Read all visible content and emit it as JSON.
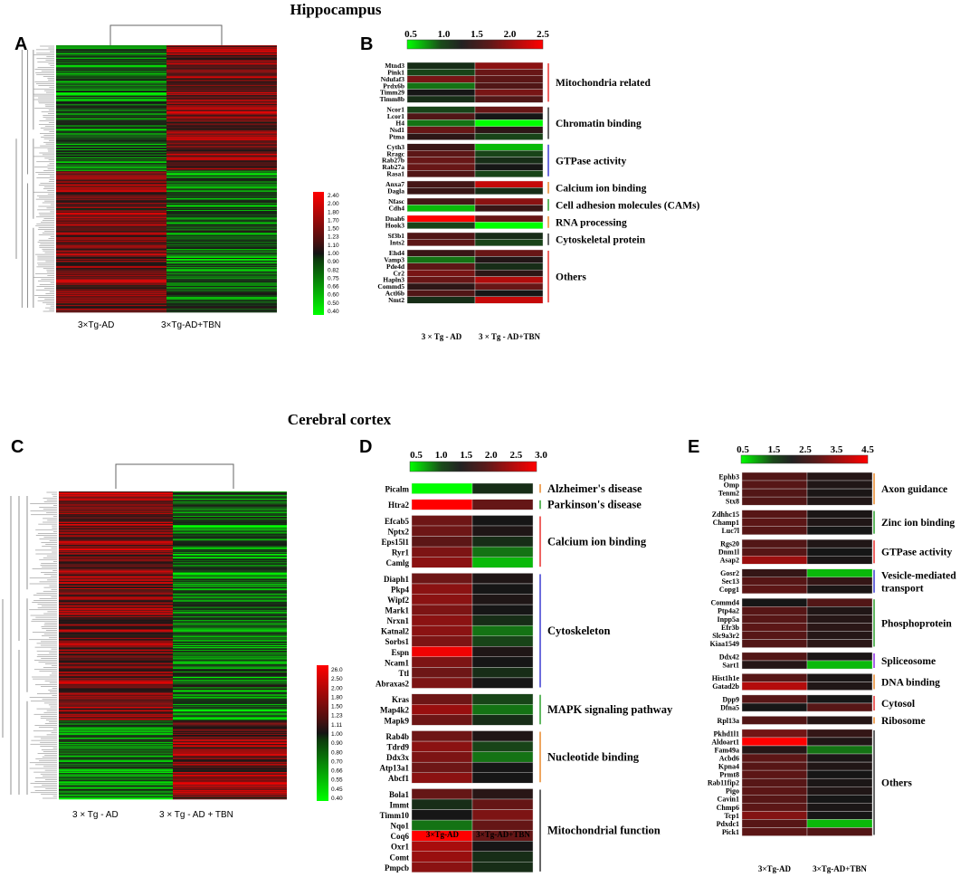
{
  "titles": {
    "hippocampus": "Hippocampus",
    "cortex": "Cerebral cortex"
  },
  "panel_letters": {
    "A": "A",
    "B": "B",
    "C": "C",
    "D": "D",
    "E": "E"
  },
  "colors": {
    "green": "#00ff00",
    "black": "#141414",
    "red": "#ff0000",
    "bar_red": "#e8312d",
    "bar_black": "#333333",
    "bar_blue": "#3b3bd0",
    "bar_orange": "#e8892a",
    "bar_green": "#2ca02c",
    "bar_purple": "#8a2be2"
  },
  "chart_data": [
    {
      "panel": "A",
      "type": "heatmap",
      "title": "Hippocampus",
      "columns": [
        "3×Tg-AD",
        "3×Tg-AD+TBN"
      ],
      "legend_ticks": [
        "2.40",
        "2.00",
        "1.80",
        "1.70",
        "1.50",
        "1.23",
        "1.10",
        "1.00",
        "0.90",
        "0.82",
        "0.75",
        "0.66",
        "0.60",
        "0.50",
        "0.40"
      ],
      "row_count": 300,
      "pattern": "top ~45% of genes lower in 3×Tg-AD (green) and higher in 3×Tg-AD+TBN (red); bottom ~55% higher in 3×Tg-AD (red) and lower in 3×Tg-AD+TBN (green)"
    },
    {
      "panel": "B",
      "type": "heatmap",
      "scale_ticks": [
        "0.5",
        "1.0",
        "1.5",
        "2.0",
        "2.5"
      ],
      "columns": [
        "3 × Tg - AD",
        "3 × Tg - AD+TBN"
      ],
      "groups": [
        {
          "name": "Mitochondria related",
          "color": "red",
          "genes": [
            "Mtnd3",
            "Pink1",
            "Ndufaf3",
            "Prdx6b",
            "Timm29",
            "Timm8b"
          ],
          "values": [
            [
              0.9,
              1.9
            ],
            [
              0.8,
              1.7
            ],
            [
              1.8,
              1.6
            ],
            [
              0.7,
              1.5
            ],
            [
              1.0,
              1.8
            ],
            [
              0.9,
              1.5
            ]
          ]
        },
        {
          "name": "Chromatin binding",
          "color": "black",
          "genes": [
            "Ncor1",
            "Lcor1",
            "H4",
            "Nsd1",
            "Ptma"
          ],
          "values": [
            [
              0.8,
              1.7
            ],
            [
              1.5,
              1.0
            ],
            [
              0.7,
              0.5
            ],
            [
              1.7,
              1.2
            ],
            [
              1.2,
              0.8
            ]
          ]
        },
        {
          "name": "GTPase activity",
          "color": "blue",
          "genes": [
            "Cyth3",
            "Rragc",
            "Rab27b",
            "Rab27a",
            "Rasa1"
          ],
          "values": [
            [
              1.3,
              0.6
            ],
            [
              1.6,
              0.8
            ],
            [
              1.7,
              0.9
            ],
            [
              1.7,
              1.0
            ],
            [
              1.5,
              0.8
            ]
          ]
        },
        {
          "name": "Calcium ion binding",
          "color": "orange",
          "genes": [
            "Anxa7",
            "Dagla"
          ],
          "values": [
            [
              1.4,
              2.2
            ],
            [
              1.3,
              0.9
            ]
          ]
        },
        {
          "name": "Cell adhesion molecules (CAMs)",
          "color": "green",
          "genes": [
            "Nfasc",
            "Cdh4"
          ],
          "values": [
            [
              1.4,
              1.9
            ],
            [
              0.6,
              1.3
            ]
          ]
        },
        {
          "name": "RNA processing",
          "color": "orange",
          "genes": [
            "Dnah6",
            "Hook3"
          ],
          "values": [
            [
              2.5,
              1.7
            ],
            [
              0.8,
              0.5
            ]
          ]
        },
        {
          "name": "Cytoskeletal protein",
          "color": "black",
          "genes": [
            "Sf3b1",
            "Ints2"
          ],
          "values": [
            [
              1.5,
              0.9
            ],
            [
              1.6,
              0.8
            ]
          ]
        },
        {
          "name": "Others",
          "color": "red",
          "genes": [
            "Ehd4",
            "Vamp3",
            "Pde4d",
            "Cr2",
            "Hapln3",
            "Commd5",
            "Actl6b",
            "Nmt2"
          ],
          "values": [
            [
              1.3,
              1.7
            ],
            [
              0.7,
              1.1
            ],
            [
              1.6,
              0.9
            ],
            [
              1.8,
              1.2
            ],
            [
              1.7,
              2.1
            ],
            [
              1.2,
              1.7
            ],
            [
              1.5,
              1.0
            ],
            [
              0.9,
              2.2
            ]
          ]
        }
      ]
    },
    {
      "panel": "C",
      "type": "heatmap",
      "title": "Cerebral cortex",
      "columns": [
        "3 × Tg - AD",
        "3 × Tg - AD + TBN"
      ],
      "legend_ticks": [
        "26.0",
        "2.50",
        "2.00",
        "1.80",
        "1.50",
        "1.23",
        "1.11",
        "1.00",
        "0.90",
        "0.80",
        "0.70",
        "0.66",
        "0.55",
        "0.45",
        "0.40"
      ],
      "row_count": 330,
      "pattern": "top ~75% of genes higher in 3×Tg-AD (red) and lower with TBN (green/black); bottom ~25% lower in 3×Tg-AD (green) and higher with TBN (red)"
    },
    {
      "panel": "D",
      "type": "heatmap",
      "scale_ticks": [
        "0.5",
        "1.0",
        "1.5",
        "2.0",
        "2.5",
        "3.0"
      ],
      "columns": [
        "3×Tg-AD",
        "3×Tg-AD+TBN"
      ],
      "groups": [
        {
          "name": "Alzheimer's disease",
          "color": "orange",
          "genes": [
            "Picalm"
          ],
          "values": [
            [
              0.5,
              0.9
            ]
          ]
        },
        {
          "name": "Parkinson's disease",
          "color": "green",
          "genes": [
            "Htra2"
          ],
          "values": [
            [
              3.0,
              1.9
            ]
          ]
        },
        {
          "name": "Calcium ion binding",
          "color": "red",
          "genes": [
            "Efcab5",
            "Nptx2",
            "Eps15l1",
            "Ryr1",
            "Camlg"
          ],
          "values": [
            [
              2.0,
              1.0
            ],
            [
              2.0,
              1.1
            ],
            [
              1.8,
              0.9
            ],
            [
              2.1,
              0.7
            ],
            [
              2.2,
              0.6
            ]
          ]
        },
        {
          "name": "Cytoskeleton",
          "color": "blue",
          "genes": [
            "Diaph1",
            "Pkp4",
            "Wipf2",
            "Mark1",
            "Nrxn1",
            "Katnal2",
            "Sorbs1",
            "Espn",
            "Ncam1",
            "Ttl",
            "Abraxas2"
          ],
          "values": [
            [
              2.0,
              1.1
            ],
            [
              2.2,
              1.0
            ],
            [
              2.2,
              1.1
            ],
            [
              2.1,
              1.0
            ],
            [
              2.2,
              0.9
            ],
            [
              2.2,
              0.7
            ],
            [
              2.1,
              0.8
            ],
            [
              2.9,
              1.1
            ],
            [
              2.1,
              1.0
            ],
            [
              2.0,
              0.9
            ],
            [
              2.1,
              1.0
            ]
          ]
        },
        {
          "name": "MAPK signaling pathway",
          "color": "green",
          "genes": [
            "Kras",
            "Map4k2",
            "Mapk9"
          ],
          "values": [
            [
              2.0,
              0.8
            ],
            [
              2.3,
              0.7
            ],
            [
              2.0,
              0.9
            ]
          ]
        },
        {
          "name": "Nucleotide binding",
          "color": "orange",
          "genes": [
            "Rab4b",
            "Tdrd9",
            "Ddx3x",
            "Atp13a1",
            "Abcf1"
          ],
          "values": [
            [
              2.0,
              1.1
            ],
            [
              2.2,
              0.8
            ],
            [
              2.1,
              0.7
            ],
            [
              2.0,
              1.0
            ],
            [
              2.2,
              1.0
            ]
          ]
        },
        {
          "name": "Mitochondrial function",
          "color": "black",
          "genes": [
            "Bola1",
            "Immt",
            "Timm10",
            "Nqo1",
            "Coq6",
            "Oxr1",
            "Comt",
            "Pmpcb"
          ],
          "values": [
            [
              1.9,
              1.2
            ],
            [
              0.9,
              1.9
            ],
            [
              1.0,
              2.1
            ],
            [
              0.7,
              1.9
            ],
            [
              3.0,
              1.9
            ],
            [
              2.4,
              1.0
            ],
            [
              2.3,
              0.9
            ],
            [
              2.2,
              0.9
            ]
          ]
        }
      ]
    },
    {
      "panel": "E",
      "type": "heatmap",
      "scale_ticks": [
        "0.5",
        "1.5",
        "2.5",
        "3.5",
        "4.5"
      ],
      "columns": [
        "3×Tg-AD",
        "3×Tg-AD+TBN"
      ],
      "groups": [
        {
          "name": "Axon guidance",
          "color": "orange",
          "genes": [
            "Ephb3",
            "Omp",
            "Tenm2",
            "Stx8"
          ],
          "values": [
            [
              2.2,
              1.3
            ],
            [
              2.3,
              1.2
            ],
            [
              2.2,
              1.1
            ],
            [
              2.2,
              1.2
            ]
          ]
        },
        {
          "name": "Zinc ion binding",
          "color": "green",
          "genes": [
            "Zdhhc15",
            "Champ1",
            "Luc7l"
          ],
          "values": [
            [
              2.3,
              1.1
            ],
            [
              2.4,
              1.2
            ],
            [
              2.3,
              1.0
            ]
          ]
        },
        {
          "name": "GTPase activity",
          "color": "red",
          "genes": [
            "Rgs20",
            "Dnm1l",
            "Asap2"
          ],
          "values": [
            [
              2.2,
              1.2
            ],
            [
              2.3,
              1.0
            ],
            [
              3.3,
              1.1
            ]
          ]
        },
        {
          "name": "Vesicle-mediated transport",
          "color": "blue",
          "genes": [
            "Gosr2",
            "Sec13",
            "Copg1"
          ],
          "values": [
            [
              1.6,
              0.6
            ],
            [
              2.3,
              1.6
            ],
            [
              2.4,
              1.1
            ]
          ]
        },
        {
          "name": "Phosphoprotein",
          "color": "green",
          "genes": [
            "Commd4",
            "Ptp4a2",
            "Inpp5a",
            "Efr3b",
            "Slc9a3r2",
            "Kiaa1549"
          ],
          "values": [
            [
              1.0,
              2.2
            ],
            [
              2.3,
              1.2
            ],
            [
              2.3,
              1.3
            ],
            [
              2.4,
              1.4
            ],
            [
              2.3,
              1.3
            ],
            [
              2.2,
              1.4
            ]
          ]
        },
        {
          "name": "Spliceosome",
          "color": "purple",
          "genes": [
            "Ddx42",
            "Sart1"
          ],
          "values": [
            [
              2.2,
              1.1
            ],
            [
              1.3,
              0.6
            ]
          ]
        },
        {
          "name": "DNA binding",
          "color": "orange",
          "genes": [
            "Hist1h1e",
            "Gatad2b"
          ],
          "values": [
            [
              2.3,
              1.1
            ],
            [
              3.6,
              1.2
            ]
          ]
        },
        {
          "name": "Cytosol",
          "color": "red",
          "genes": [
            "Dpp9",
            "Dfna5"
          ],
          "values": [
            [
              2.3,
              1.0
            ],
            [
              1.0,
              2.3
            ]
          ]
        },
        {
          "name": "Ribosome",
          "color": "orange",
          "genes": [
            "Rpl13a"
          ],
          "values": [
            [
              2.2,
              1.3
            ]
          ]
        },
        {
          "name": "Others",
          "color": "black",
          "genes": [
            "Pkhd1l1",
            "Aldoart1",
            "Fam49a",
            "Acbd6",
            "Kpna4",
            "Prmt8",
            "Rab11fip2",
            "Pigo",
            "Cavin1",
            "Chmp6",
            "Tcp1",
            "Pdxdc1",
            "Pick1"
          ],
          "values": [
            [
              2.8,
              1.6
            ],
            [
              4.5,
              1.2
            ],
            [
              1.3,
              0.7
            ],
            [
              2.4,
              1.1
            ],
            [
              2.3,
              1.2
            ],
            [
              2.4,
              1.0
            ],
            [
              2.3,
              1.1
            ],
            [
              2.4,
              1.2
            ],
            [
              2.3,
              1.0
            ],
            [
              2.4,
              1.1
            ],
            [
              3.0,
              1.0
            ],
            [
              2.3,
              0.6
            ],
            [
              2.4,
              2.2
            ]
          ]
        }
      ]
    }
  ]
}
